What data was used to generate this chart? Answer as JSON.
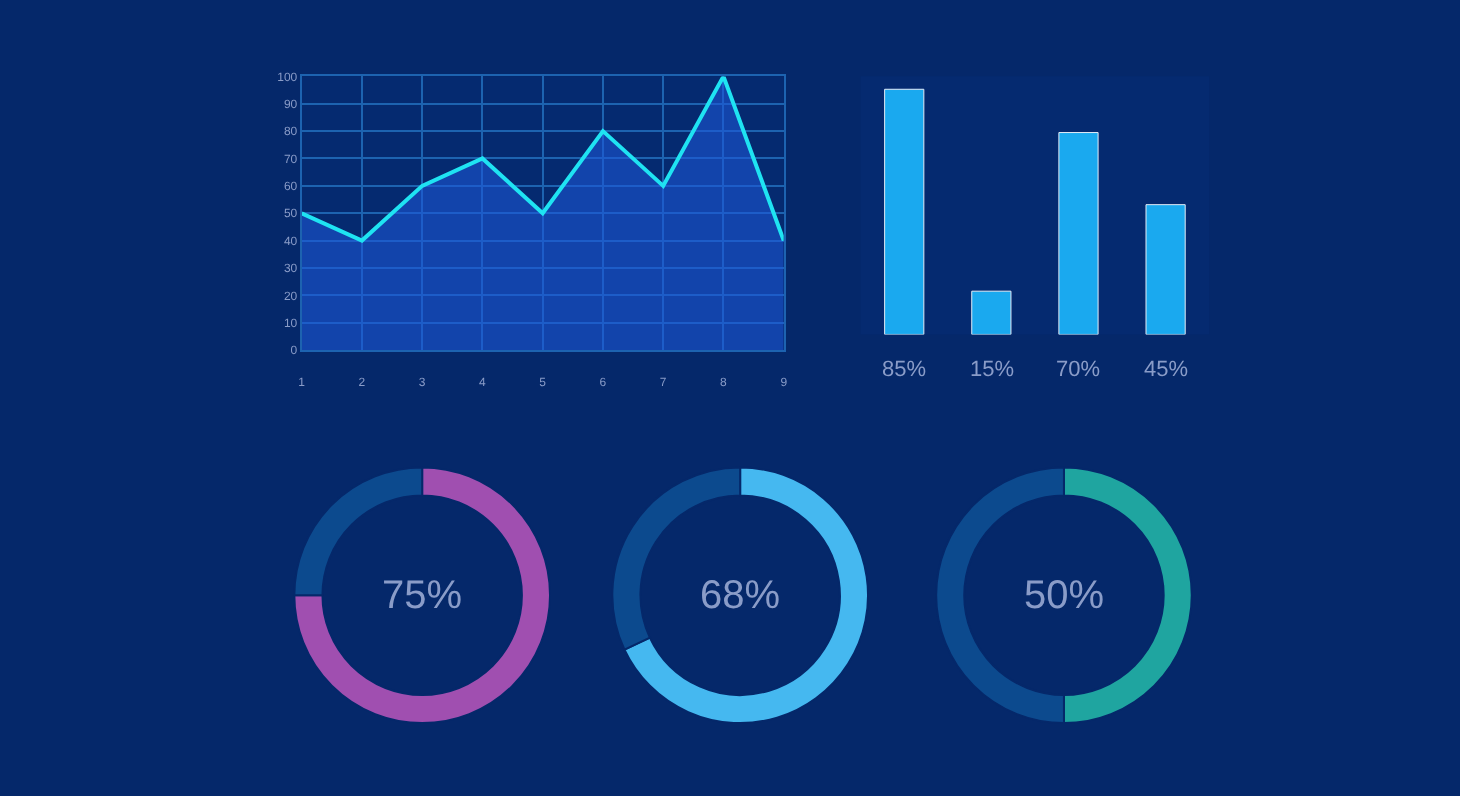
{
  "chart_data": [
    {
      "type": "area",
      "x": [
        1,
        2,
        3,
        4,
        5,
        6,
        7,
        8,
        9
      ],
      "series": [
        {
          "color": "#1fe3f2",
          "values": [
            50,
            40,
            60,
            70,
            50,
            80,
            60,
            100,
            40
          ]
        }
      ],
      "xlim": [
        1,
        9
      ],
      "xticks": [
        1,
        2,
        3,
        4,
        5,
        6,
        7,
        8,
        9
      ],
      "ylim": [
        0,
        100
      ],
      "yticks": [
        0,
        10,
        20,
        30,
        40,
        50,
        60,
        70,
        80,
        90,
        100
      ],
      "grid": true,
      "marker": "none",
      "line_style": "solid"
    },
    {
      "type": "bar",
      "categories": [
        null,
        null,
        null,
        null
      ],
      "values": [
        85,
        15,
        70,
        45
      ],
      "color": "#1aa9ef",
      "value_labels": [
        "85%",
        "15%",
        "70%",
        "45%"
      ]
    },
    {
      "type": "donut",
      "categories": [
        null,
        null
      ],
      "values": [
        75,
        25
      ],
      "colors": [
        "#a04fb0",
        "#0c4a8e"
      ],
      "value_labels": [
        "75%",
        null
      ]
    },
    {
      "type": "donut",
      "categories": [
        null,
        null
      ],
      "values": [
        68,
        32
      ],
      "colors": [
        "#45b8f0",
        "#0c4a8e"
      ],
      "value_labels": [
        "68%",
        null
      ]
    },
    {
      "type": "donut",
      "categories": [
        null,
        null
      ],
      "values": [
        50,
        50
      ],
      "colors": [
        "#1fa5a0",
        "#0c4a8e"
      ],
      "value_labels": [
        "50%",
        null
      ]
    }
  ]
}
